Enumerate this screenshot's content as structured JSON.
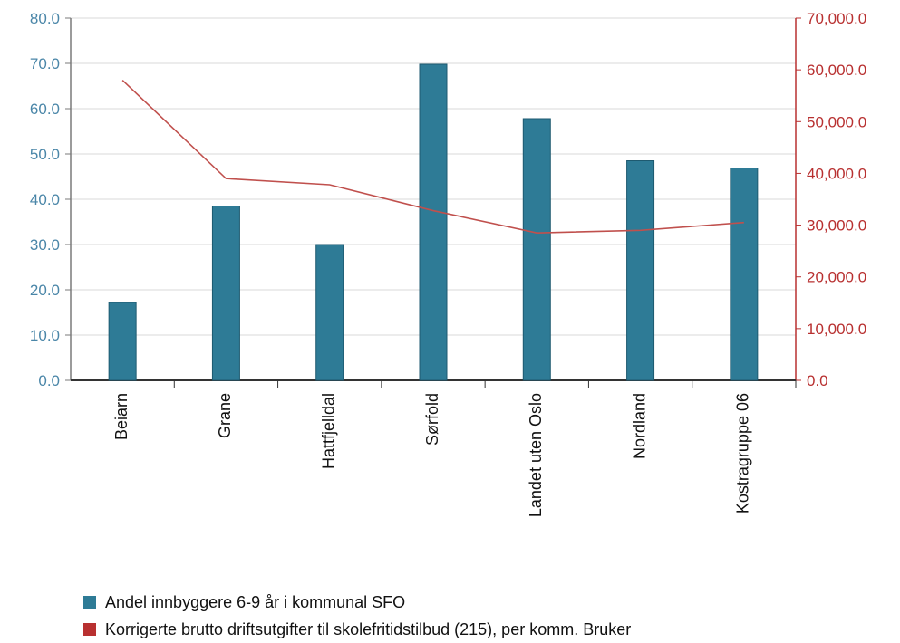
{
  "colors": {
    "bar": "#2e7b96",
    "bar_stroke": "#1e5a70",
    "line": "#c0504d",
    "left_axis_text": "#4a86a8",
    "right_axis": "#b83030",
    "grid": "#d9d9d9"
  },
  "legend": [
    {
      "label": "Andel innbyggere 6-9 år i kommunal SFO",
      "color": "#2e7b96"
    },
    {
      "label": "Korrigerte brutto driftsutgifter til skolefritidstilbud (215), per komm. Bruker",
      "color": "#b83030"
    }
  ],
  "chart_data": {
    "type": "bar+line",
    "categories": [
      "Beiarn",
      "Grane",
      "Hattfjelldal",
      "Sørfold",
      "Landet uten Oslo",
      "Nordland",
      "Kostragruppe 06"
    ],
    "series": [
      {
        "name": "Andel innbyggere 6-9 år i kommunal SFO",
        "type": "bar",
        "axis": "left",
        "values": [
          17.2,
          38.5,
          30.0,
          69.8,
          57.8,
          48.5,
          46.9
        ]
      },
      {
        "name": "Korrigerte brutto driftsutgifter til skolefritidstilbud (215), per komm. Bruker",
        "type": "line",
        "axis": "right",
        "values": [
          58000,
          39000,
          37800,
          32800,
          28500,
          29000,
          30500
        ]
      }
    ],
    "y_left": {
      "min": 0,
      "max": 80,
      "step": 10,
      "ticks": [
        "0.0",
        "10.0",
        "20.0",
        "30.0",
        "40.0",
        "50.0",
        "60.0",
        "70.0",
        "80.0"
      ]
    },
    "y_right": {
      "min": 0,
      "max": 70000,
      "step": 10000,
      "ticks": [
        "0.0",
        "10,000.0",
        "20,000.0",
        "30,000.0",
        "40,000.0",
        "50,000.0",
        "60,000.0",
        "70,000.0"
      ]
    },
    "grid": true,
    "legend_position": "bottom-left"
  }
}
